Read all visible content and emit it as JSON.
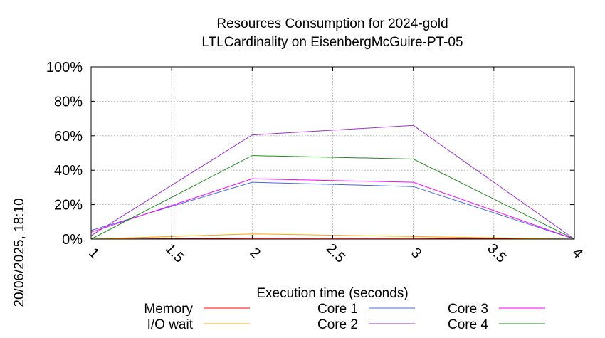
{
  "chart_data": {
    "type": "line",
    "title": [
      "Resources Consumption for 2024-gold",
      "LTLCardinality on EisenbergMcGuire-PT-05"
    ],
    "xlabel": "Execution time (seconds)",
    "ylabel": "",
    "side_label": "20/06/2025, 18:10",
    "xlim": [
      1,
      4
    ],
    "ylim": [
      0,
      100
    ],
    "x_ticks": [
      "1",
      "1.5",
      "2",
      "2.5",
      "3",
      "3.5",
      "4"
    ],
    "y_ticks": [
      "0%",
      "20%",
      "40%",
      "60%",
      "80%",
      "100%"
    ],
    "grid": true,
    "legend_position": "bottom",
    "series": [
      {
        "name": "Memory",
        "color": "#ff0000",
        "x": [
          1,
          2,
          3,
          4
        ],
        "y": [
          0,
          0.5,
          0.5,
          0
        ]
      },
      {
        "name": "I/O wait",
        "color": "#ffa500",
        "x": [
          1,
          2,
          3,
          4
        ],
        "y": [
          0,
          3,
          1.5,
          0
        ]
      },
      {
        "name": "Core 1",
        "color": "#4169e1",
        "x": [
          1,
          2,
          3,
          4
        ],
        "y": [
          5,
          33,
          30.5,
          0
        ]
      },
      {
        "name": "Core 2",
        "color": "#9a32cd",
        "x": [
          1,
          2,
          3,
          4
        ],
        "y": [
          2,
          60.5,
          66,
          0
        ]
      },
      {
        "name": "Core 3",
        "color": "#ff00ff",
        "x": [
          1,
          2,
          3,
          4
        ],
        "y": [
          4,
          35,
          33,
          0
        ]
      },
      {
        "name": "Core 4",
        "color": "#228b22",
        "x": [
          1,
          2,
          3,
          4
        ],
        "y": [
          0,
          48.5,
          46.5,
          0
        ]
      }
    ]
  }
}
